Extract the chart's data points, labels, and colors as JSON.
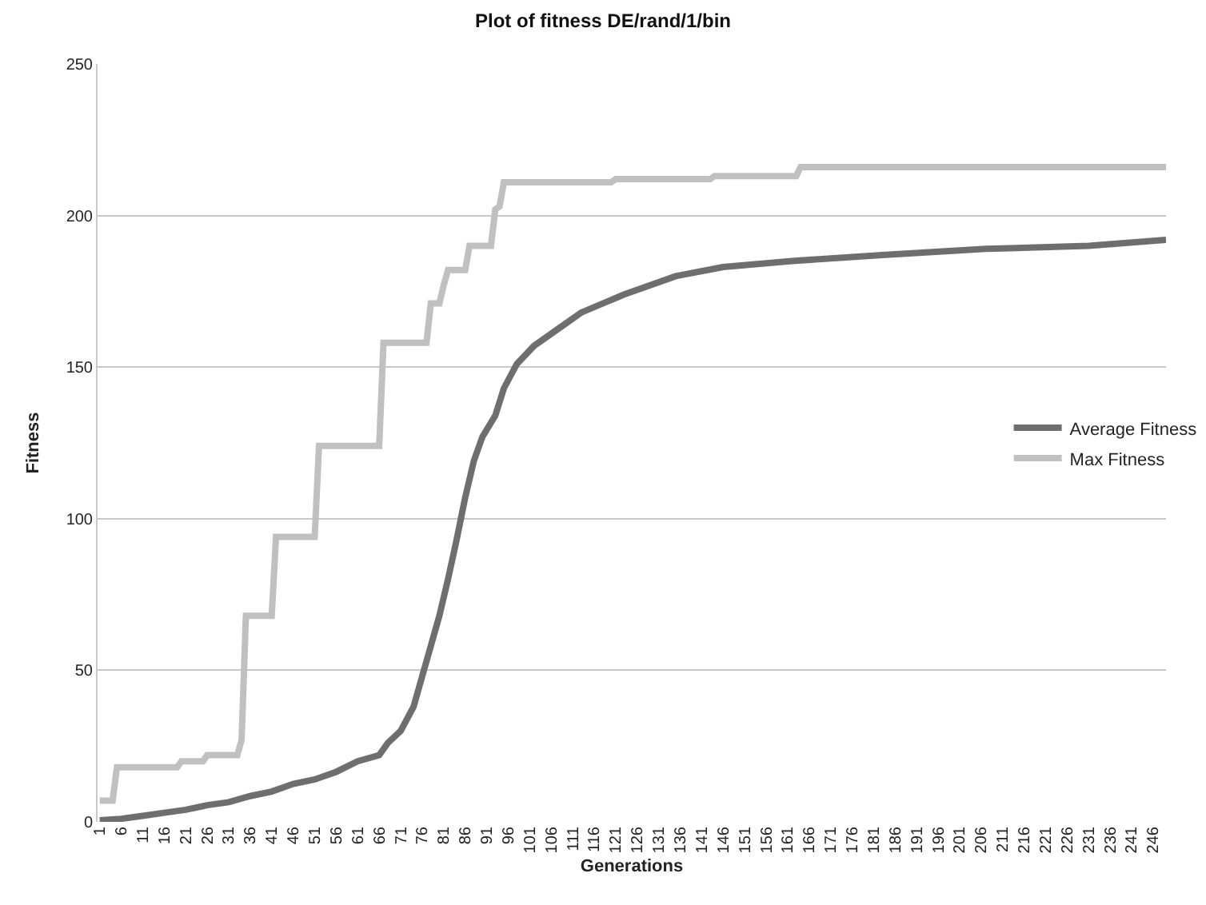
{
  "chart_data": {
    "type": "line",
    "title": "Plot of fitness DE/rand/1/bin",
    "xlabel": "Generations",
    "ylabel": "Fitness",
    "xlim": [
      0.5,
      249
    ],
    "xticks": [
      1,
      6,
      11,
      16,
      21,
      26,
      31,
      36,
      41,
      46,
      51,
      56,
      61,
      66,
      71,
      76,
      81,
      86,
      91,
      96,
      101,
      106,
      111,
      116,
      121,
      126,
      131,
      136,
      141,
      146,
      151,
      156,
      161,
      166,
      171,
      176,
      181,
      186,
      191,
      196,
      201,
      206,
      211,
      216,
      221,
      226,
      231,
      236,
      241,
      246
    ],
    "ylim": [
      0,
      250
    ],
    "yticks": [
      0,
      50,
      100,
      150,
      200,
      250
    ],
    "grid": "y",
    "legend": "right",
    "marker": "none",
    "line_style": "solid",
    "series": [
      {
        "name": "Average Fitness",
        "color": "#6e6e6e",
        "x": [
          1,
          6,
          11,
          16,
          21,
          26,
          31,
          36,
          41,
          46,
          51,
          56,
          61,
          66,
          68,
          71,
          74,
          76,
          78,
          80,
          82,
          84,
          86,
          88,
          90,
          93,
          95,
          98,
          102,
          109,
          113,
          123,
          135,
          146,
          162,
          183,
          207,
          231,
          249
        ],
        "values": [
          0.5,
          1,
          2,
          3,
          4,
          5.5,
          6.5,
          8.5,
          10,
          12.5,
          14,
          16.5,
          20,
          22,
          26,
          30,
          38,
          48,
          58,
          68,
          80,
          93,
          107,
          119,
          127,
          134,
          143,
          151,
          157,
          164,
          168,
          174,
          180,
          183,
          185,
          187,
          189,
          190,
          192
        ]
      },
      {
        "name": "Max Fitness",
        "color": "#c0c0c0",
        "x": [
          1,
          4,
          5,
          19,
          20,
          25,
          26,
          33,
          34,
          35,
          41,
          42,
          51,
          52,
          66,
          67,
          77,
          78,
          80,
          81,
          82,
          86,
          87,
          92,
          93,
          94,
          95,
          120,
          121,
          143,
          144,
          163,
          164,
          249
        ],
        "values": [
          7,
          7,
          18,
          18,
          20,
          20,
          22,
          22,
          27,
          68,
          68,
          94,
          94,
          124,
          124,
          158,
          158,
          171,
          171,
          177,
          182,
          182,
          190,
          190,
          202,
          203,
          211,
          211,
          212,
          212,
          213,
          213,
          216,
          216
        ]
      }
    ]
  }
}
